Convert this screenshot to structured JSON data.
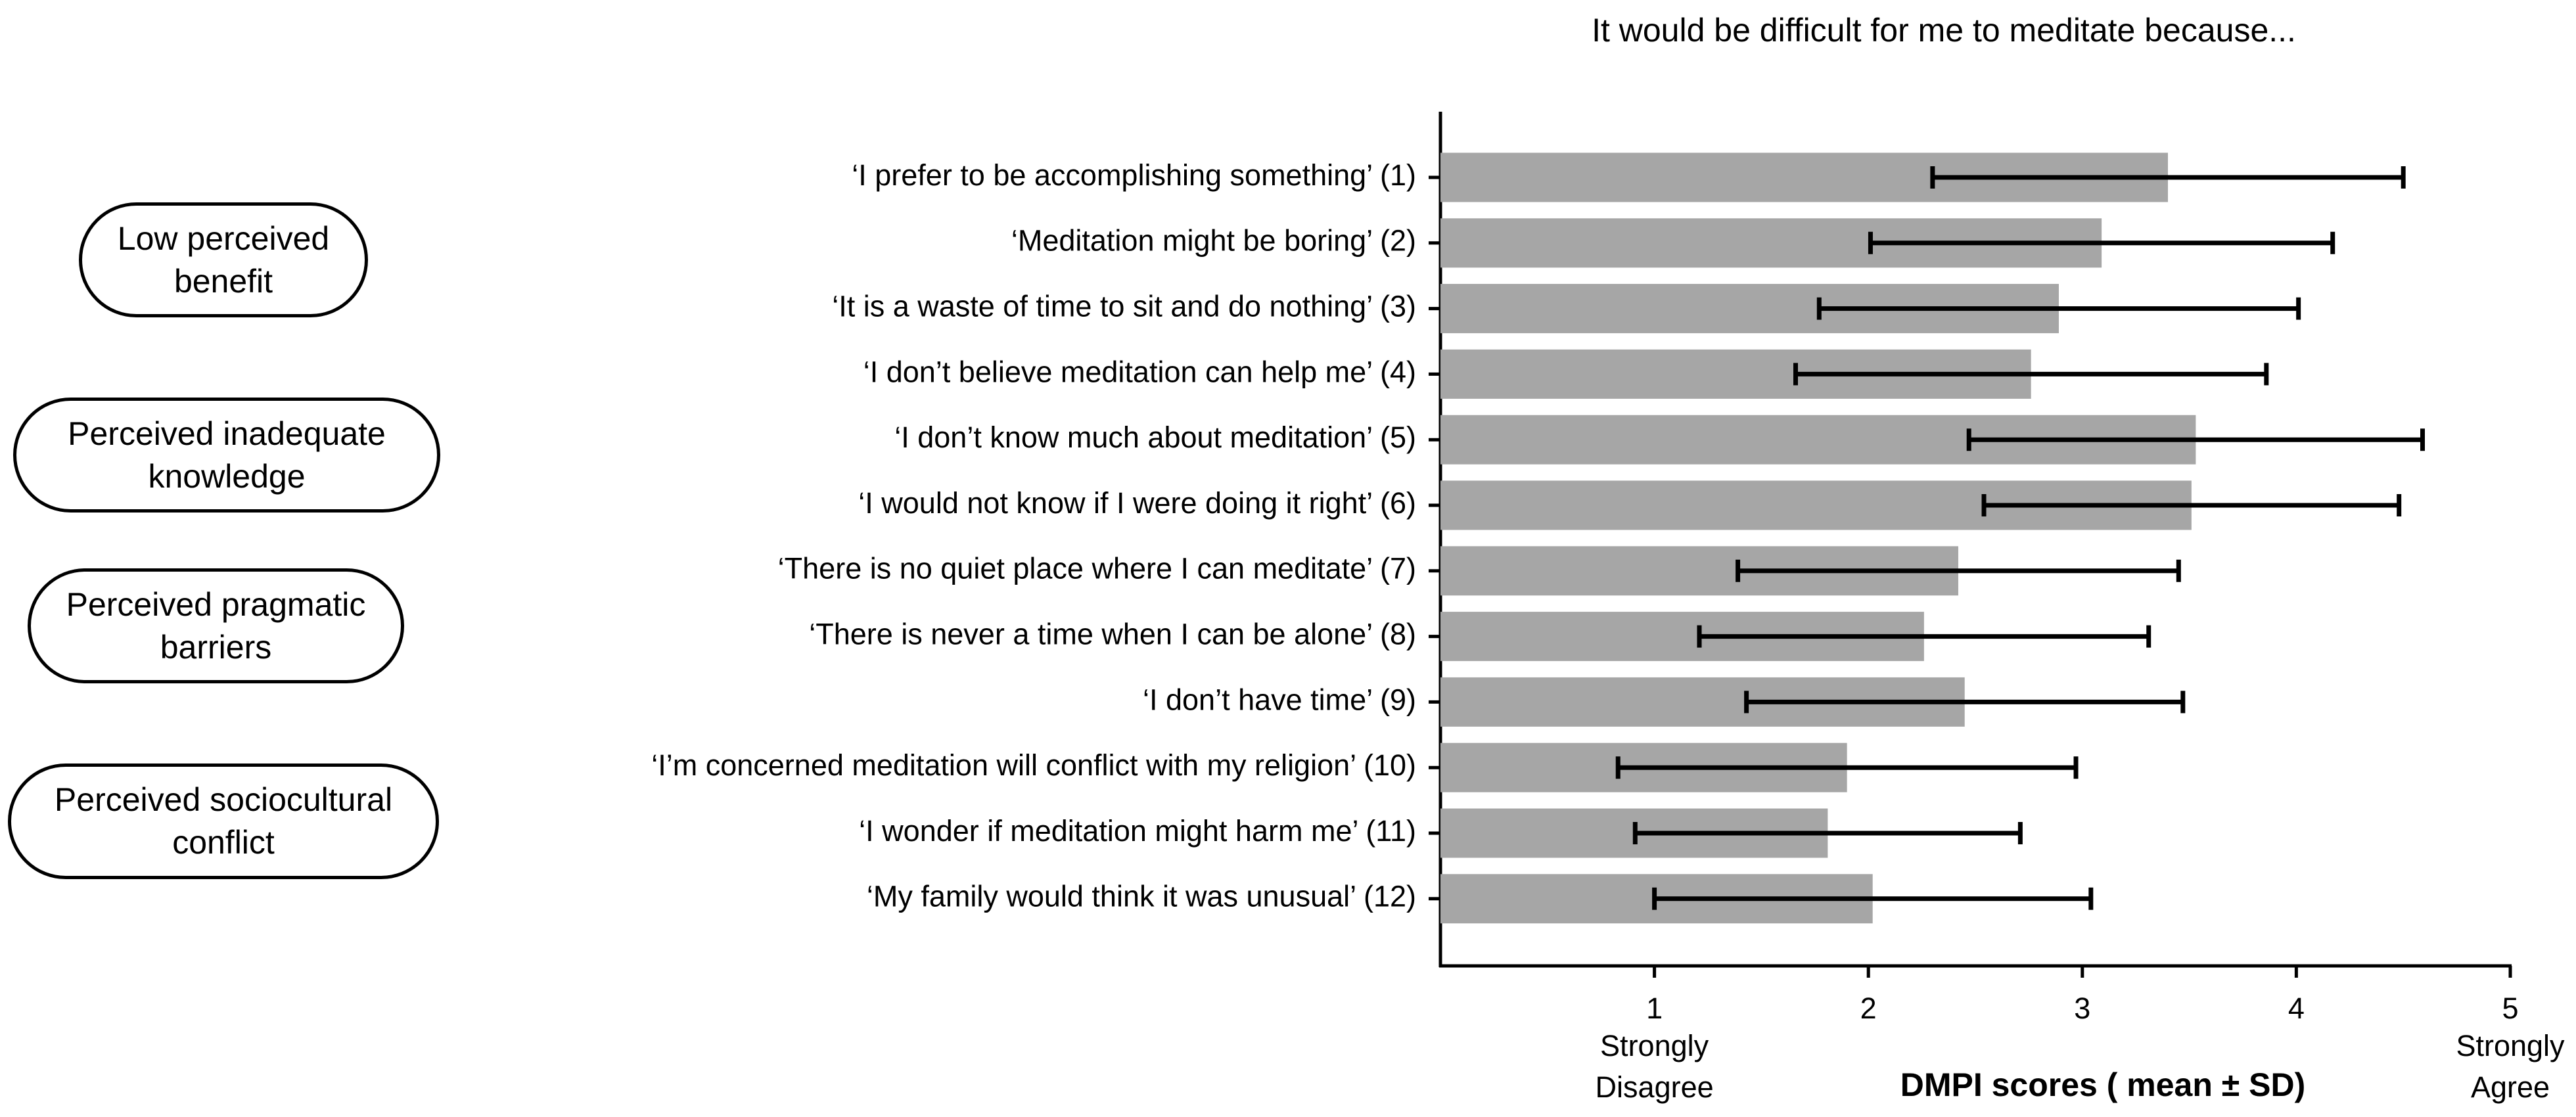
{
  "chart_data": {
    "type": "bar",
    "orientation": "horizontal",
    "title": "It would be difficult for me to meditate because...",
    "categories": [
      "‘I prefer to be accomplishing something’ (1)",
      "‘Meditation might be boring’ (2)",
      "‘It is a waste of time to sit and do nothing’ (3)",
      "‘I don’t believe meditation can help me’ (4)",
      "‘I don’t know much about meditation’ (5)",
      "‘I would not know if I were doing it right’ (6)",
      "‘There is no quiet place where I can meditate’ (7)",
      "‘There is never a time when I can be alone’ (8)",
      "‘I don’t have time’ (9)",
      "‘I’m concerned meditation will conflict with my religion’ (10)",
      "‘I wonder if meditation might harm me’ (11)",
      "‘My family would think it was unusual’ (12)"
    ],
    "values": [
      3.4,
      3.09,
      2.89,
      2.76,
      3.53,
      3.51,
      2.42,
      2.26,
      2.45,
      1.9,
      1.81,
      2.02
    ],
    "errors": [
      1.1,
      1.08,
      1.12,
      1.1,
      1.06,
      0.97,
      1.03,
      1.05,
      1.02,
      1.07,
      0.9,
      1.02
    ],
    "color": "#a6a6a6",
    "xlim": [
      0,
      5
    ],
    "xticks": [
      1,
      2,
      3,
      4,
      5
    ],
    "xlabel": "DMPI scores ( mean ± SD)",
    "annotations": [
      {
        "text": "Strongly Disagree",
        "x": 1
      },
      {
        "text": "Strongly Agree",
        "x": 5
      }
    ],
    "groups": [
      "Low perceived benefit",
      "Perceived inadequate knowledge",
      "Perceived pragmatic barriers",
      "Perceived sociocultural conflict"
    ]
  }
}
